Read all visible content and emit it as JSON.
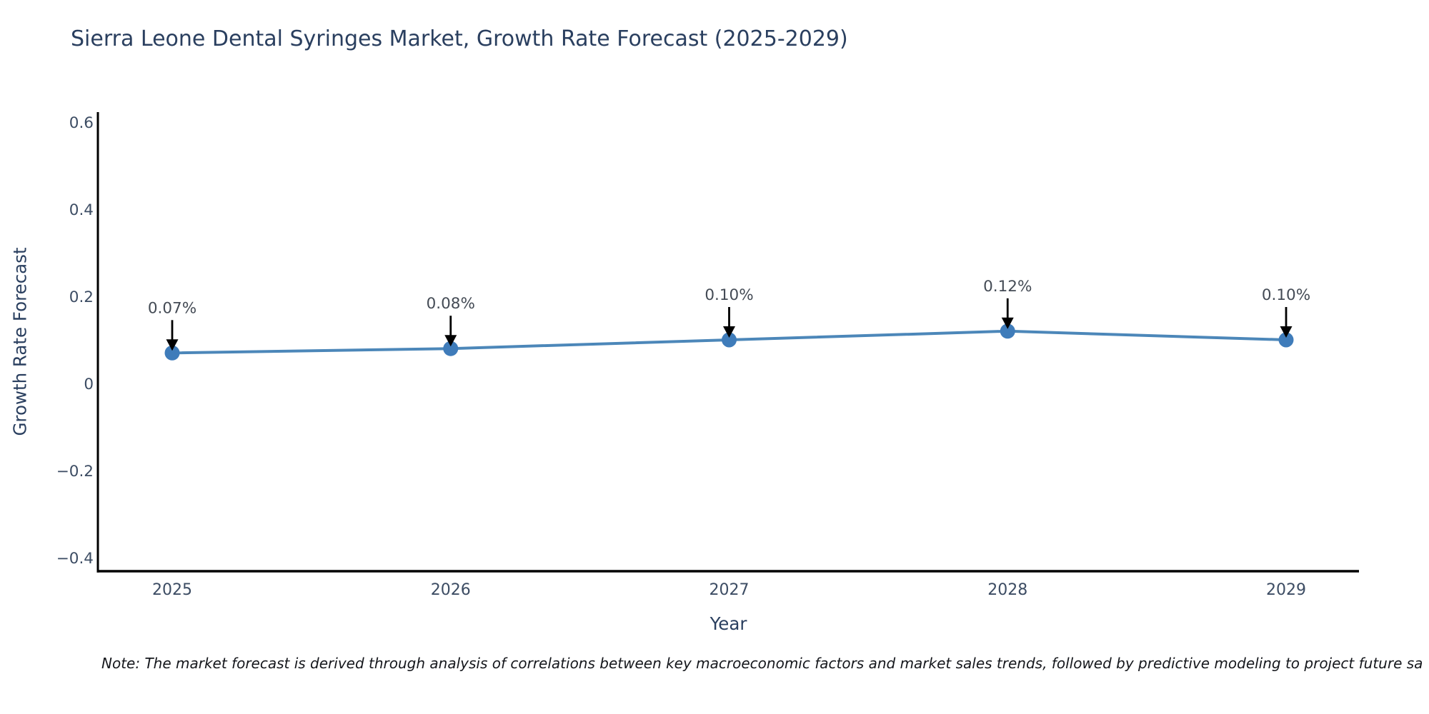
{
  "note": "Note: The market forecast is derived through analysis of correlations between key macroeconomic factors and market sales trends, followed by predictive modeling to project future sa",
  "chart_data": {
    "type": "line",
    "title": "Sierra Leone Dental Syringes Market, Growth Rate Forecast (2025-2029)",
    "xlabel": "Year",
    "ylabel": "Growth Rate Forecast",
    "x": [
      "2025",
      "2026",
      "2027",
      "2028",
      "2029"
    ],
    "series": [
      {
        "name": "Growth Rate Forecast",
        "values": [
          0.07,
          0.08,
          0.1,
          0.12,
          0.1
        ]
      }
    ],
    "point_labels": [
      "0.07%",
      "0.08%",
      "0.10%",
      "0.12%",
      "0.10%"
    ],
    "ytick_values": [
      0.6,
      0.4,
      0.2,
      0,
      -0.2,
      -0.4
    ],
    "ytick_labels": [
      "0.6",
      "0.4",
      "0.2",
      "0",
      "−0.2",
      "−0.4"
    ],
    "ylim": [
      -0.43,
      0.62
    ],
    "grid": false,
    "legend": "none",
    "line_color": "#4c87b9",
    "marker_color": "#3f7cba",
    "arrow_color": "#000000",
    "axis_color": "#000000",
    "tick_color": "#3c4c63",
    "title_color": "#2a3f5f",
    "annotation_color": "#444b55"
  }
}
